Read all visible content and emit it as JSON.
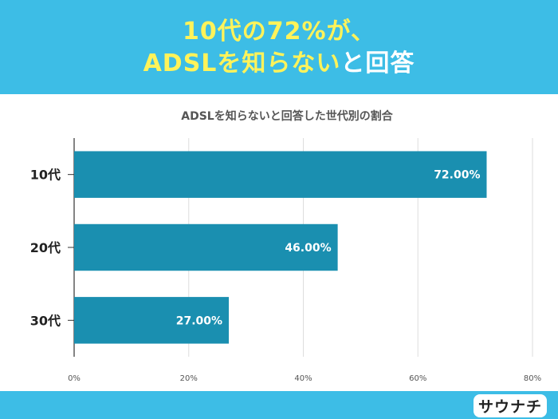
{
  "headline": {
    "line1": "10代の72%が、",
    "line2_highlight": "ADSLを知らない",
    "line2_rest": "と回答"
  },
  "logo_text": "サウナチ",
  "colors": {
    "banner": "#3dbde6",
    "bar": "#1a8fb0",
    "headline_yellow": "#fff35a"
  },
  "chart_data": {
    "type": "bar",
    "orientation": "horizontal",
    "title": "ADSLを知らないと回答した世代別の割合",
    "categories": [
      "10代",
      "20代",
      "30代"
    ],
    "values": [
      72,
      46,
      27
    ],
    "value_labels": [
      "72.00%",
      "46.00%",
      "27.00%"
    ],
    "xlim": [
      0,
      80
    ],
    "xticks": [
      "0%",
      "20%",
      "40%",
      "60%",
      "80%"
    ],
    "grid": true
  }
}
